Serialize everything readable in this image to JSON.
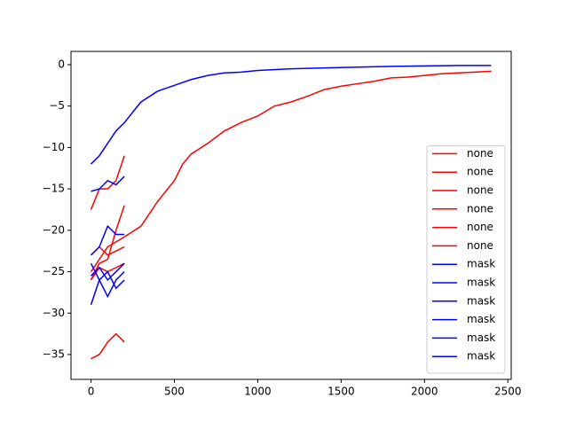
{
  "chart_data": {
    "type": "line",
    "xlim": [
      -120,
      2520
    ],
    "ylim": [
      -38,
      1.6
    ],
    "xticks": [
      0,
      500,
      1000,
      1500,
      2000,
      2500
    ],
    "yticks": [
      {
        "value": -35,
        "label": "−35"
      },
      {
        "value": -30,
        "label": "−30"
      },
      {
        "value": -25,
        "label": "−25"
      },
      {
        "value": -20,
        "label": "−20"
      },
      {
        "value": -15,
        "label": "−15"
      },
      {
        "value": -10,
        "label": "−10"
      },
      {
        "value": -5,
        "label": "−5"
      },
      0
    ],
    "legend": "lower right",
    "series": [
      {
        "name": "none",
        "color": "#ff0000",
        "x": [
          0,
          100,
          200,
          300,
          400,
          500,
          550,
          600,
          700,
          800,
          900,
          1000,
          1100,
          1200,
          1300,
          1400,
          1500,
          1600,
          1700,
          1800,
          1900,
          2000,
          2100,
          2200,
          2300,
          2400
        ],
        "values": [
          -25,
          -22,
          -20.8,
          -19.5,
          -16.5,
          -14,
          -12,
          -10.8,
          -9.5,
          -8,
          -7,
          -6.2,
          -5,
          -4.5,
          -3.8,
          -3,
          -2.6,
          -2.3,
          -2,
          -1.6,
          -1.5,
          -1.3,
          -1.1,
          -1,
          -0.9,
          -0.8
        ]
      },
      {
        "name": "none",
        "color": "#ff0000",
        "x": [
          0,
          50,
          100,
          150,
          200
        ],
        "values": [
          -17.5,
          -15,
          -15,
          -14,
          -11
        ]
      },
      {
        "name": "none",
        "color": "#ff0000",
        "x": [
          0,
          50,
          100,
          150,
          200
        ],
        "values": [
          -35.5,
          -35,
          -33.5,
          -32.5,
          -33.5
        ]
      },
      {
        "name": "none",
        "color": "#ff0000",
        "x": [
          0,
          50,
          100,
          150,
          200
        ],
        "values": [
          -26,
          -24,
          -23.5,
          -20,
          -17
        ]
      },
      {
        "name": "none",
        "color": "#ff0000",
        "x": [
          0,
          50,
          100,
          150,
          200
        ],
        "values": [
          -23,
          -22,
          -23,
          -22.5,
          -22
        ]
      },
      {
        "name": "none",
        "color": "#ff0000",
        "x": [
          0,
          50,
          100,
          150,
          200
        ],
        "values": [
          -26,
          -24.5,
          -25,
          -24.5,
          -24
        ]
      },
      {
        "name": "mask",
        "color": "#0000ff",
        "x": [
          0,
          50,
          100,
          150,
          200,
          300,
          400,
          500,
          600,
          700,
          800,
          900,
          1000,
          1200,
          1400,
          1600,
          1800,
          2000,
          2200,
          2400
        ],
        "values": [
          -12,
          -11,
          -9.5,
          -8,
          -7,
          -4.5,
          -3.2,
          -2.5,
          -1.8,
          -1.3,
          -1,
          -0.9,
          -0.7,
          -0.5,
          -0.4,
          -0.3,
          -0.2,
          -0.15,
          -0.1,
          -0.1
        ]
      },
      {
        "name": "mask",
        "color": "#0000ff",
        "x": [
          0,
          50,
          100,
          150,
          200
        ],
        "values": [
          -15.3,
          -15,
          -14,
          -14.5,
          -13.5
        ]
      },
      {
        "name": "mask",
        "color": "#0000ff",
        "x": [
          0,
          50,
          100,
          150,
          200
        ],
        "values": [
          -23,
          -22,
          -19.5,
          -20.5,
          -20.5
        ]
      },
      {
        "name": "mask",
        "color": "#0000ff",
        "x": [
          0,
          50,
          100,
          150,
          200
        ],
        "values": [
          -29,
          -26,
          -28,
          -26,
          -25
        ]
      },
      {
        "name": "mask",
        "color": "#0000ff",
        "x": [
          0,
          50,
          100,
          150,
          200
        ],
        "values": [
          -25.5,
          -24.5,
          -26,
          -25,
          -24
        ]
      },
      {
        "name": "mask",
        "color": "#0000ff",
        "x": [
          0,
          50,
          100,
          150,
          200
        ],
        "values": [
          -24,
          -26,
          -25,
          -27,
          -26
        ]
      }
    ]
  }
}
